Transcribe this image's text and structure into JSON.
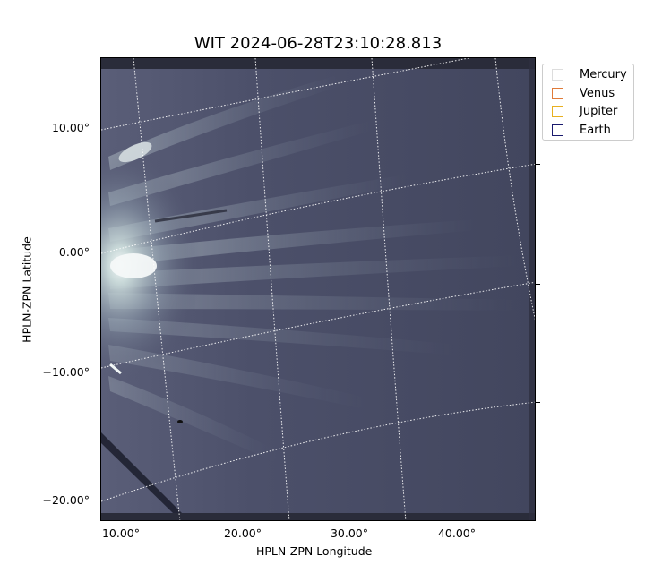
{
  "title": "WIT 2024-06-28T23:10:28.813",
  "axes": {
    "xlabel": "HPLN-ZPN Longitude",
    "ylabel": "HPLN-ZPN Latitude",
    "yticks": [
      "10.00°",
      "0.00°",
      "−10.00°",
      "−20.00°"
    ],
    "xticks": [
      "10.00°",
      "20.00°",
      "30.00°",
      "40.00°"
    ]
  },
  "legend": {
    "items": [
      {
        "label": "Mercury",
        "color": "#dddddd"
      },
      {
        "label": "Venus",
        "color": "#e07b39"
      },
      {
        "label": "Jupiter",
        "color": "#e8b020"
      },
      {
        "label": "Earth",
        "color": "#1a1a6e"
      }
    ]
  },
  "image": {
    "description_colormap": "bone",
    "grid": "dotted white coordinate grid"
  }
}
